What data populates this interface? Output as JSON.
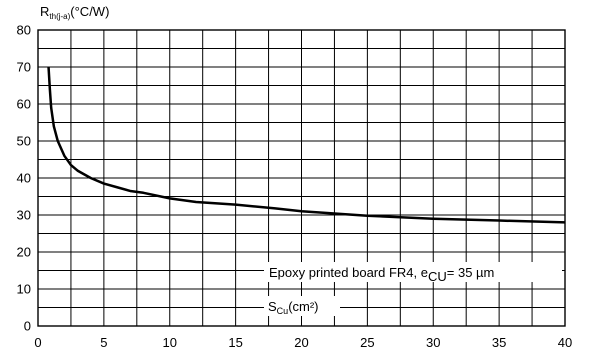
{
  "chart_data": {
    "type": "line",
    "ylabel": {
      "main": "R",
      "sub": "th(j-a)",
      "unit": "(°C/W)"
    },
    "xlabel": {
      "main": "S",
      "sub": "Cu",
      "unit": "(cm²)"
    },
    "xlim": [
      0,
      40
    ],
    "ylim": [
      0,
      80
    ],
    "x_ticks": [
      0,
      5,
      10,
      15,
      20,
      25,
      30,
      35,
      40
    ],
    "y_ticks": [
      0,
      10,
      20,
      30,
      40,
      50,
      60,
      70,
      80
    ],
    "x_grid_step": 2.5,
    "y_grid_step": 5,
    "grid": true,
    "annotation": {
      "pre": "Epoxy printed board FR4, e",
      "sub": "CU",
      "post": "= 35 µm"
    },
    "series": [
      {
        "x": [
          0.8,
          0.9,
          1.0,
          1.2,
          1.5,
          2.0,
          2.5,
          3.0,
          4.0,
          5.0,
          6.0,
          7.0,
          8.0,
          10.0,
          12.0,
          15.0,
          18.0,
          20.0,
          25.0,
          30.0,
          35.0,
          40.0
        ],
        "y": [
          70,
          64,
          59,
          54,
          50,
          46,
          43.5,
          42,
          40,
          38.5,
          37.5,
          36.5,
          36,
          34.5,
          33.5,
          32.8,
          31.8,
          31,
          29.8,
          29,
          28.5,
          28
        ]
      }
    ]
  }
}
